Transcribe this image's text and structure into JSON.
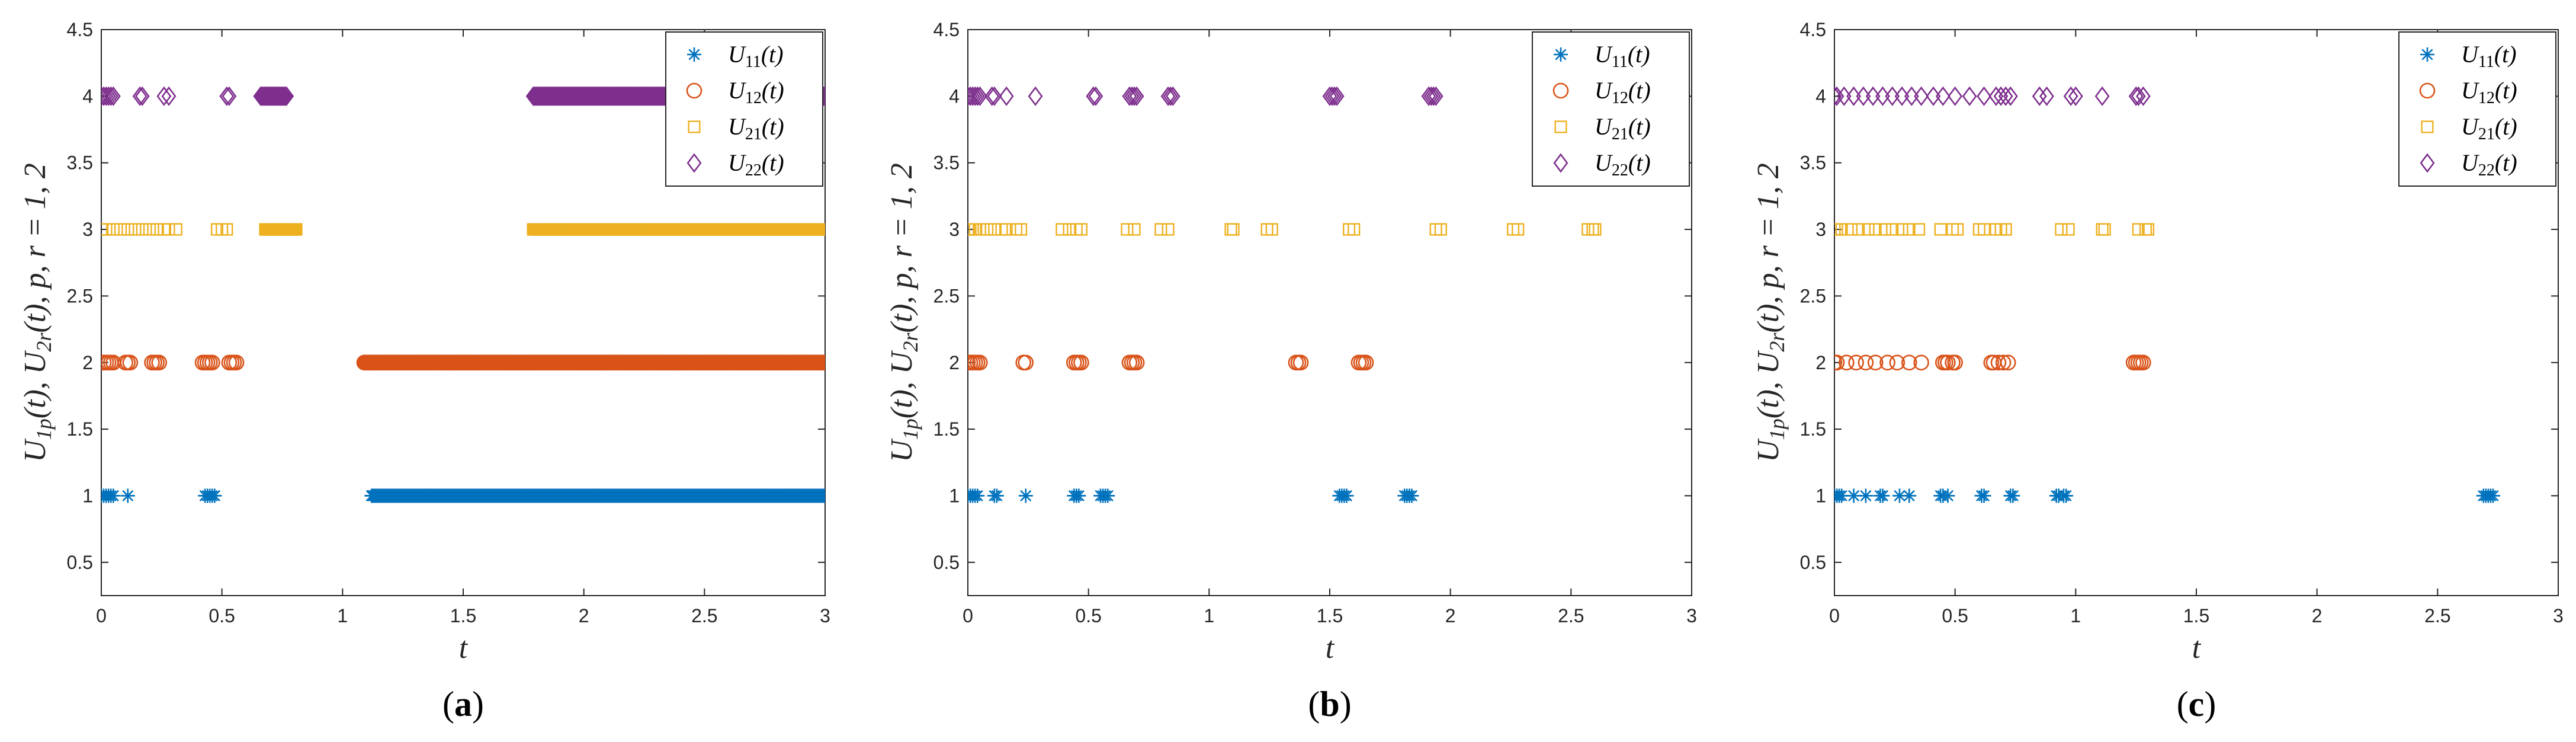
{
  "colors": {
    "U11": "#0072BD",
    "U12": "#D95319",
    "U21": "#EDB120",
    "U22": "#7E2F8E"
  },
  "chart_data": [
    {
      "type": "scatter",
      "subplot_label": {
        "open": "(",
        "letter": "a",
        "close": ")"
      },
      "xlabel": "t",
      "ylabel": "U1p(t), U2r(t), p, r = 1, 2",
      "xlim": [
        0,
        3
      ],
      "ylim": [
        0.25,
        4.5
      ],
      "xticks": [
        "0",
        "0.5",
        "1",
        "1.5",
        "2",
        "2.5",
        "3"
      ],
      "yticks": [
        "0.5",
        "1",
        "1.5",
        "2",
        "2.5",
        "3",
        "3.5",
        "4",
        "4.5"
      ],
      "legend_position": "top-right",
      "series": [
        {
          "name": "U11(t)",
          "marker": "asterisk",
          "y": 1,
          "points": [
            0.0,
            0.01,
            0.02,
            0.03,
            0.04,
            0.05,
            0.11,
            0.43,
            0.44,
            0.45,
            0.46,
            0.47
          ],
          "dense": [
            [
              1.12,
              3.0
            ]
          ]
        },
        {
          "name": "U12(t)",
          "marker": "circle",
          "y": 2,
          "points": [
            0.01,
            0.02,
            0.03,
            0.04,
            0.05,
            0.1,
            0.11,
            0.12,
            0.21,
            0.22,
            0.23,
            0.24,
            0.42,
            0.43,
            0.44,
            0.45,
            0.46,
            0.53,
            0.54,
            0.55,
            0.56
          ],
          "dense": [
            [
              1.09,
              3.0
            ]
          ]
        },
        {
          "name": "U21(t)",
          "marker": "square",
          "y": 3,
          "points": [
            0.0,
            0.02,
            0.05,
            0.08,
            0.11,
            0.14,
            0.17,
            0.2,
            0.23,
            0.26,
            0.28,
            0.31,
            0.48,
            0.5,
            0.52
          ],
          "dense": [
            [
              0.68,
              0.81
            ],
            [
              1.79,
              3.0
            ]
          ]
        },
        {
          "name": "U22(t)",
          "marker": "diamond",
          "y": 4,
          "points": [
            0.0,
            0.01,
            0.02,
            0.03,
            0.04,
            0.05,
            0.16,
            0.17,
            0.26,
            0.28,
            0.52,
            0.53
          ],
          "dense": [
            [
              0.66,
              0.77
            ],
            [
              1.79,
              3.0
            ]
          ]
        }
      ]
    },
    {
      "type": "scatter",
      "subplot_label": {
        "open": "(",
        "letter": "b",
        "close": ")"
      },
      "xlabel": "t",
      "ylabel": "U1p(t), U2r(t), p, r = 1, 2",
      "xlim": [
        0,
        3
      ],
      "ylim": [
        0.25,
        4.5
      ],
      "xticks": [
        "0",
        "0.5",
        "1",
        "1.5",
        "2",
        "2.5",
        "3"
      ],
      "yticks": [
        "0.5",
        "1",
        "1.5",
        "2",
        "2.5",
        "3",
        "3.5",
        "4",
        "4.5"
      ],
      "legend_position": "top-right",
      "series": [
        {
          "name": "U11(t)",
          "marker": "asterisk",
          "y": 1,
          "points": [
            0.0,
            0.01,
            0.02,
            0.03,
            0.04,
            0.11,
            0.12,
            0.24,
            0.44,
            0.45,
            0.46,
            0.55,
            0.56,
            0.57,
            0.58,
            1.54,
            1.55,
            1.56,
            1.57,
            1.81,
            1.82,
            1.83,
            1.84
          ],
          "dense": []
        },
        {
          "name": "U12(t)",
          "marker": "circle",
          "y": 2,
          "points": [
            0.0,
            0.01,
            0.02,
            0.03,
            0.04,
            0.05,
            0.23,
            0.24,
            0.44,
            0.45,
            0.46,
            0.47,
            0.67,
            0.68,
            0.69,
            0.7,
            1.36,
            1.37,
            1.38,
            1.62,
            1.63,
            1.64,
            1.65
          ],
          "dense": []
        },
        {
          "name": "U21(t)",
          "marker": "square",
          "y": 3,
          "points": [
            0.0,
            0.01,
            0.02,
            0.03,
            0.05,
            0.08,
            0.11,
            0.14,
            0.16,
            0.2,
            0.22,
            0.39,
            0.42,
            0.45,
            0.47,
            0.66,
            0.69,
            0.8,
            0.83,
            1.09,
            1.1,
            1.24,
            1.26,
            1.58,
            1.6,
            1.94,
            1.96,
            2.26,
            2.28,
            2.57,
            2.59,
            2.6
          ],
          "dense": []
        },
        {
          "name": "U22(t)",
          "marker": "diamond",
          "y": 4,
          "points": [
            0.0,
            0.01,
            0.02,
            0.03,
            0.04,
            0.05,
            0.1,
            0.11,
            0.16,
            0.28,
            0.52,
            0.53,
            0.67,
            0.68,
            0.69,
            0.7,
            0.83,
            0.84,
            0.85,
            1.5,
            1.51,
            1.52,
            1.53,
            1.91,
            1.92,
            1.93,
            1.94
          ],
          "dense": []
        }
      ]
    },
    {
      "type": "scatter",
      "subplot_label": {
        "open": "(",
        "letter": "c",
        "close": ")"
      },
      "xlabel": "t",
      "ylabel": "U1p(t), U2r(t), p, r = 1, 2",
      "xlim": [
        0,
        3
      ],
      "ylim": [
        0.25,
        4.5
      ],
      "xticks": [
        "0",
        "0.5",
        "1",
        "1.5",
        "2",
        "2.5",
        "3"
      ],
      "yticks": [
        "0.5",
        "1",
        "1.5",
        "2",
        "2.5",
        "3",
        "3.5",
        "4",
        "4.5"
      ],
      "legend_position": "top-right",
      "series": [
        {
          "name": "U11(t)",
          "marker": "asterisk",
          "y": 1,
          "points": [
            0.0,
            0.01,
            0.02,
            0.03,
            0.08,
            0.13,
            0.19,
            0.2,
            0.27,
            0.31,
            0.44,
            0.45,
            0.47,
            0.61,
            0.62,
            0.73,
            0.74,
            0.92,
            0.93,
            0.95,
            0.96,
            2.69,
            2.7,
            2.71,
            2.72,
            2.73
          ],
          "dense": []
        },
        {
          "name": "U12(t)",
          "marker": "circle",
          "y": 2,
          "points": [
            0.0,
            0.01,
            0.05,
            0.09,
            0.13,
            0.17,
            0.22,
            0.26,
            0.31,
            0.36,
            0.45,
            0.46,
            0.47,
            0.49,
            0.5,
            0.65,
            0.66,
            0.68,
            0.7,
            0.72,
            1.24,
            1.25,
            1.26,
            1.27,
            1.28
          ],
          "dense": []
        },
        {
          "name": "U21(t)",
          "marker": "square",
          "y": 3,
          "points": [
            0.0,
            0.01,
            0.03,
            0.07,
            0.1,
            0.14,
            0.17,
            0.21,
            0.24,
            0.28,
            0.31,
            0.35,
            0.44,
            0.49,
            0.51,
            0.6,
            0.62,
            0.67,
            0.69,
            0.71,
            0.94,
            0.97,
            1.11,
            1.12,
            1.26,
            1.29,
            1.3
          ],
          "dense": []
        },
        {
          "name": "U22(t)",
          "marker": "diamond",
          "y": 4,
          "points": [
            0.0,
            0.01,
            0.04,
            0.08,
            0.12,
            0.16,
            0.2,
            0.24,
            0.28,
            0.32,
            0.36,
            0.41,
            0.45,
            0.5,
            0.56,
            0.62,
            0.67,
            0.69,
            0.71,
            0.73,
            0.85,
            0.88,
            0.98,
            1.0,
            1.11,
            1.25,
            1.26,
            1.28
          ],
          "dense": []
        }
      ]
    }
  ]
}
